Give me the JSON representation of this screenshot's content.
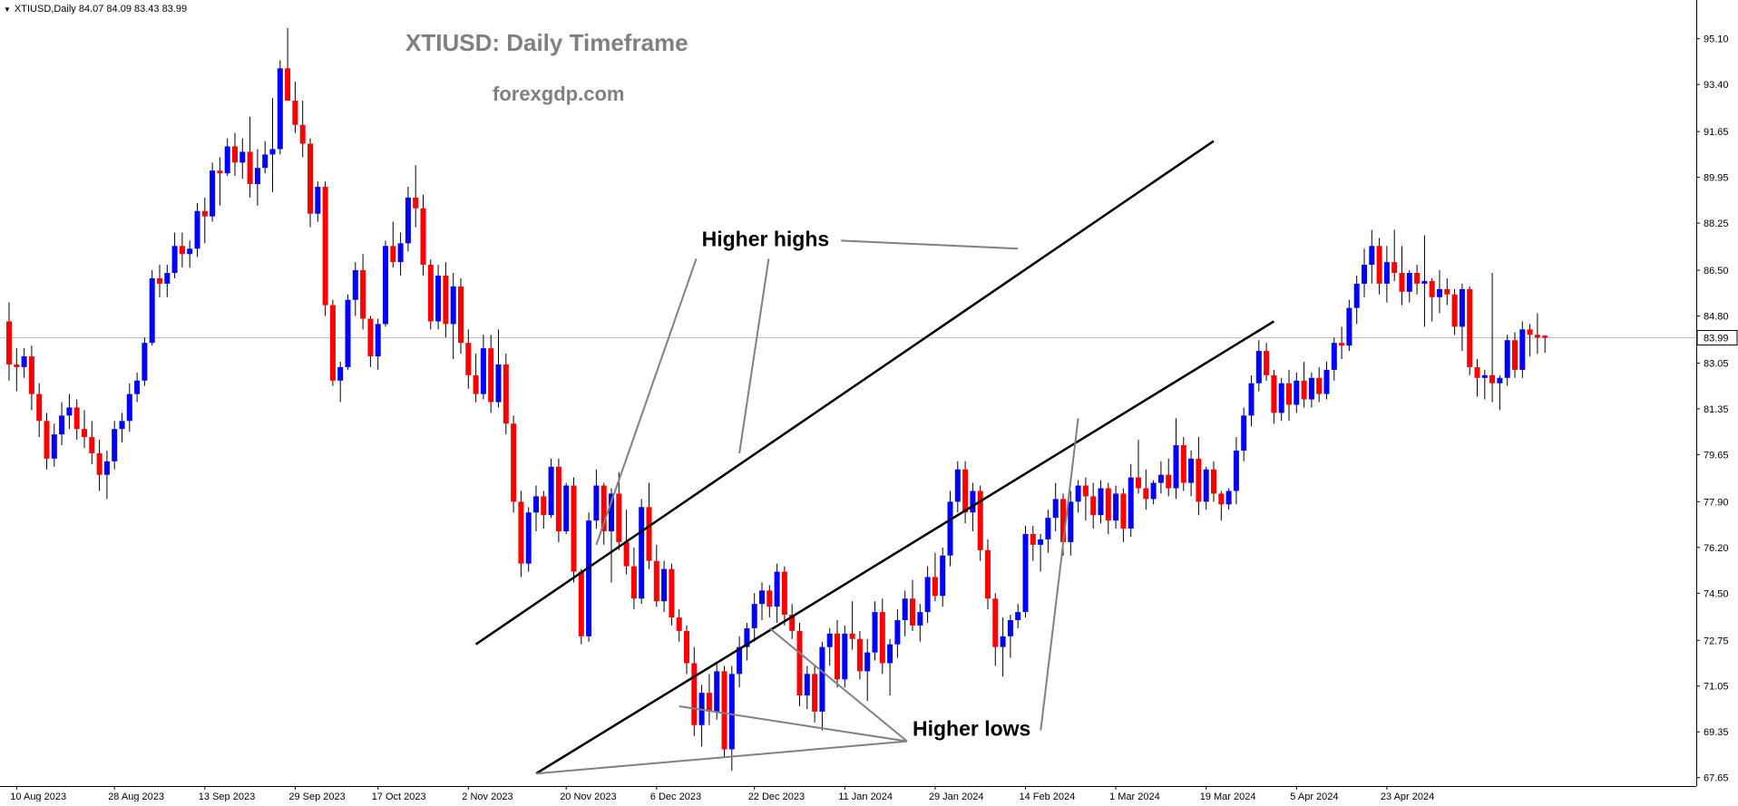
{
  "header": {
    "symbol_line": "XTIUSD,Daily  84.07 84.09 83.43 83.99",
    "dropdown_icon": "triangle-down-icon"
  },
  "chart_data": {
    "type": "candlestick",
    "title": "XTIUSD: Daily Timeframe",
    "subtitle": "forexgdp.com",
    "current_price": "83.99",
    "current_price_value": 83.99,
    "ylim": [
      67.1,
      96.0
    ],
    "y_ticks": [
      "95.10",
      "93.40",
      "91.65",
      "89.95",
      "88.25",
      "86.50",
      "84.80",
      "83.05",
      "81.35",
      "79.65",
      "77.90",
      "76.20",
      "74.50",
      "72.75",
      "71.05",
      "69.35",
      "67.65"
    ],
    "x_ticks": [
      "10 Aug 2023",
      "28 Aug 2023",
      "13 Sep 2023",
      "29 Sep 2023",
      "17 Oct 2023",
      "2 Nov 2023",
      "20 Nov 2023",
      "6 Dec 2023",
      "22 Dec 2023",
      "11 Jan 2024",
      "29 Jan 2024",
      "14 Feb 2024",
      "1 Mar 2024",
      "19 Mar 2024",
      "5 Apr 2024",
      "23 Apr 2024"
    ],
    "x_tick_index": [
      1,
      14,
      26,
      38,
      49,
      61,
      74,
      86,
      99,
      111,
      123,
      135,
      147,
      159,
      171,
      183
    ],
    "colors": {
      "bull": "#0000ff",
      "bear": "#ff0000",
      "wick": "#000000",
      "grid": "#c0c0c0",
      "title": "#808080"
    },
    "candles_ohlc": [
      [
        84.6,
        85.3,
        82.4,
        83.0
      ],
      [
        83.0,
        83.6,
        82.0,
        82.9
      ],
      [
        82.9,
        83.6,
        82.5,
        83.3
      ],
      [
        83.3,
        83.7,
        81.3,
        81.9
      ],
      [
        81.9,
        82.3,
        80.3,
        80.9
      ],
      [
        80.9,
        81.2,
        79.1,
        79.5
      ],
      [
        79.5,
        80.8,
        79.2,
        80.4
      ],
      [
        80.4,
        81.6,
        80.0,
        81.1
      ],
      [
        81.1,
        81.9,
        80.6,
        81.4
      ],
      [
        81.4,
        81.7,
        80.2,
        80.6
      ],
      [
        80.6,
        81.3,
        79.9,
        80.3
      ],
      [
        80.3,
        80.9,
        79.3,
        79.7
      ],
      [
        79.7,
        80.2,
        78.3,
        78.9
      ],
      [
        78.9,
        79.8,
        78.0,
        79.4
      ],
      [
        79.4,
        80.9,
        79.1,
        80.6
      ],
      [
        80.6,
        81.2,
        80.1,
        80.9
      ],
      [
        80.9,
        82.3,
        80.5,
        81.9
      ],
      [
        81.9,
        82.7,
        81.6,
        82.4
      ],
      [
        82.4,
        84.0,
        82.2,
        83.8
      ],
      [
        83.8,
        86.5,
        83.7,
        86.2
      ],
      [
        86.2,
        86.7,
        85.5,
        86.0
      ],
      [
        86.0,
        86.7,
        85.5,
        86.4
      ],
      [
        86.4,
        87.9,
        86.2,
        87.4
      ],
      [
        87.4,
        87.9,
        86.6,
        87.1
      ],
      [
        87.1,
        87.6,
        86.6,
        87.3
      ],
      [
        87.3,
        89.0,
        87.0,
        88.7
      ],
      [
        88.7,
        89.2,
        87.5,
        88.5
      ],
      [
        88.5,
        90.5,
        88.3,
        90.2
      ],
      [
        90.2,
        90.7,
        88.9,
        90.1
      ],
      [
        90.1,
        91.4,
        90.0,
        91.1
      ],
      [
        91.1,
        91.6,
        90.0,
        90.5
      ],
      [
        90.5,
        91.4,
        89.9,
        90.9
      ],
      [
        90.9,
        92.2,
        89.2,
        89.7
      ],
      [
        89.7,
        91.0,
        88.9,
        90.3
      ],
      [
        90.3,
        91.3,
        90.1,
        90.8
      ],
      [
        90.8,
        92.9,
        89.4,
        91.0
      ],
      [
        91.0,
        94.3,
        90.8,
        94.0
      ],
      [
        94.0,
        95.5,
        93.5,
        92.8
      ],
      [
        92.8,
        93.5,
        91.6,
        91.9
      ],
      [
        91.9,
        92.8,
        90.7,
        91.2
      ],
      [
        91.2,
        91.4,
        88.1,
        88.6
      ],
      [
        88.6,
        89.8,
        88.3,
        89.6
      ],
      [
        89.6,
        89.8,
        84.8,
        85.2
      ],
      [
        85.2,
        85.4,
        82.2,
        82.4
      ],
      [
        82.4,
        83.1,
        81.6,
        82.9
      ],
      [
        82.9,
        85.6,
        82.8,
        85.4
      ],
      [
        85.4,
        86.8,
        84.8,
        86.5
      ],
      [
        86.5,
        87.1,
        84.3,
        84.7
      ],
      [
        84.7,
        84.8,
        82.9,
        83.3
      ],
      [
        83.3,
        84.7,
        82.8,
        84.5
      ],
      [
        84.5,
        87.6,
        84.4,
        87.4
      ],
      [
        87.4,
        88.3,
        86.6,
        86.8
      ],
      [
        86.8,
        87.9,
        86.3,
        87.5
      ],
      [
        87.5,
        89.6,
        87.2,
        89.2
      ],
      [
        89.2,
        90.4,
        88.1,
        88.8
      ],
      [
        88.8,
        89.3,
        86.3,
        86.7
      ],
      [
        86.7,
        86.9,
        84.3,
        84.6
      ],
      [
        84.6,
        86.7,
        84.3,
        86.3
      ],
      [
        86.3,
        86.8,
        84.0,
        84.5
      ],
      [
        84.5,
        86.4,
        83.2,
        85.9
      ],
      [
        85.9,
        86.2,
        83.4,
        83.8
      ],
      [
        83.8,
        84.3,
        82.1,
        82.6
      ],
      [
        82.6,
        83.4,
        81.6,
        81.9
      ],
      [
        81.9,
        84.1,
        81.7,
        83.6
      ],
      [
        83.6,
        84.1,
        81.2,
        81.6
      ],
      [
        81.6,
        84.3,
        81.4,
        83.0
      ],
      [
        83.0,
        83.4,
        80.4,
        80.8
      ],
      [
        80.8,
        81.1,
        77.5,
        77.9
      ],
      [
        77.9,
        78.3,
        75.1,
        75.6
      ],
      [
        75.6,
        77.7,
        75.3,
        77.5
      ],
      [
        77.5,
        78.5,
        76.8,
        78.1
      ],
      [
        78.1,
        78.3,
        76.9,
        77.4
      ],
      [
        77.4,
        79.5,
        77.3,
        79.2
      ],
      [
        79.2,
        79.5,
        76.4,
        76.8
      ],
      [
        76.8,
        78.6,
        76.7,
        78.5
      ],
      [
        78.5,
        78.8,
        74.9,
        75.3
      ],
      [
        75.3,
        75.4,
        72.6,
        72.9
      ],
      [
        72.9,
        77.5,
        72.7,
        77.2
      ],
      [
        77.2,
        79.1,
        76.9,
        78.5
      ],
      [
        78.5,
        78.6,
        76.3,
        76.8
      ],
      [
        76.8,
        78.4,
        74.9,
        78.2
      ],
      [
        78.2,
        79.0,
        76.1,
        76.4
      ],
      [
        76.4,
        77.6,
        75.2,
        75.5
      ],
      [
        75.5,
        76.2,
        73.9,
        74.3
      ],
      [
        74.3,
        78.0,
        74.1,
        77.7
      ],
      [
        77.7,
        78.6,
        75.4,
        75.7
      ],
      [
        75.7,
        76.3,
        74.0,
        74.2
      ],
      [
        74.2,
        75.7,
        73.8,
        75.4
      ],
      [
        75.4,
        75.6,
        73.3,
        73.6
      ],
      [
        73.6,
        73.9,
        72.7,
        73.1
      ],
      [
        73.1,
        73.3,
        71.5,
        71.9
      ],
      [
        71.9,
        72.5,
        69.2,
        69.6
      ],
      [
        69.6,
        71.1,
        68.8,
        70.8
      ],
      [
        70.8,
        71.5,
        69.6,
        70.1
      ],
      [
        70.1,
        71.9,
        69.8,
        71.6
      ],
      [
        71.6,
        71.8,
        68.4,
        68.7
      ],
      [
        68.7,
        71.8,
        67.9,
        71.5
      ],
      [
        71.5,
        72.9,
        71.0,
        72.5
      ],
      [
        72.5,
        73.4,
        72.0,
        73.2
      ],
      [
        73.2,
        74.5,
        72.7,
        74.1
      ],
      [
        74.1,
        74.9,
        73.5,
        74.6
      ],
      [
        74.6,
        74.8,
        73.6,
        74.0
      ],
      [
        74.0,
        75.6,
        73.4,
        75.3
      ],
      [
        75.3,
        75.5,
        73.3,
        73.7
      ],
      [
        73.7,
        74.1,
        72.8,
        73.1
      ],
      [
        73.1,
        73.4,
        70.3,
        70.7
      ],
      [
        70.7,
        71.8,
        70.2,
        71.5
      ],
      [
        71.5,
        71.8,
        69.7,
        70.1
      ],
      [
        70.1,
        72.7,
        69.4,
        72.5
      ],
      [
        72.5,
        73.2,
        71.8,
        73.0
      ],
      [
        73.0,
        73.5,
        71.0,
        71.3
      ],
      [
        71.3,
        73.3,
        71.0,
        73.0
      ],
      [
        73.0,
        74.2,
        72.4,
        72.8
      ],
      [
        72.8,
        73.1,
        71.3,
        71.6
      ],
      [
        71.6,
        72.8,
        70.5,
        72.3
      ],
      [
        72.3,
        74.2,
        72.0,
        73.8
      ],
      [
        73.8,
        74.3,
        71.5,
        71.9
      ],
      [
        71.9,
        72.8,
        70.7,
        72.6
      ],
      [
        72.6,
        73.9,
        72.1,
        73.5
      ],
      [
        73.5,
        74.6,
        72.9,
        74.3
      ],
      [
        74.3,
        75.0,
        73.1,
        73.3
      ],
      [
        73.3,
        74.1,
        72.7,
        73.8
      ],
      [
        73.8,
        75.5,
        73.4,
        75.1
      ],
      [
        75.1,
        76.0,
        74.2,
        74.4
      ],
      [
        74.4,
        76.2,
        74.0,
        75.9
      ],
      [
        75.9,
        78.3,
        75.5,
        77.9
      ],
      [
        77.9,
        79.4,
        77.5,
        79.1
      ],
      [
        79.1,
        79.4,
        77.1,
        77.5
      ],
      [
        77.5,
        78.6,
        76.8,
        78.3
      ],
      [
        78.3,
        78.5,
        75.7,
        76.1
      ],
      [
        76.1,
        76.5,
        73.9,
        74.3
      ],
      [
        74.3,
        74.5,
        71.8,
        72.5
      ],
      [
        72.5,
        73.6,
        71.4,
        72.9
      ],
      [
        72.9,
        73.7,
        72.1,
        73.5
      ],
      [
        73.5,
        74.1,
        73.2,
        73.8
      ],
      [
        73.8,
        77.0,
        73.6,
        76.7
      ],
      [
        76.7,
        77.0,
        75.7,
        76.3
      ],
      [
        76.3,
        76.7,
        75.3,
        76.5
      ],
      [
        76.5,
        77.6,
        76.0,
        77.3
      ],
      [
        77.3,
        78.6,
        76.8,
        78.0
      ],
      [
        78.0,
        78.2,
        75.9,
        76.4
      ],
      [
        76.4,
        78.3,
        75.9,
        77.9
      ],
      [
        77.9,
        78.7,
        77.5,
        78.5
      ],
      [
        78.5,
        78.8,
        77.2,
        78.1
      ],
      [
        78.1,
        78.6,
        76.9,
        77.4
      ],
      [
        77.4,
        78.7,
        77.1,
        78.4
      ],
      [
        78.4,
        78.6,
        76.7,
        77.2
      ],
      [
        77.2,
        78.5,
        76.9,
        78.2
      ],
      [
        78.2,
        78.4,
        76.4,
        76.9
      ],
      [
        76.9,
        79.3,
        76.6,
        78.8
      ],
      [
        78.8,
        80.2,
        78.2,
        78.4
      ],
      [
        78.4,
        79.1,
        77.6,
        78.0
      ],
      [
        78.0,
        78.7,
        77.8,
        78.6
      ],
      [
        78.6,
        79.4,
        78.2,
        78.9
      ],
      [
        78.9,
        79.5,
        78.1,
        78.4
      ],
      [
        78.4,
        81.0,
        78.0,
        80.0
      ],
      [
        80.0,
        80.3,
        78.3,
        78.6
      ],
      [
        78.6,
        79.8,
        78.1,
        79.5
      ],
      [
        79.5,
        80.3,
        77.4,
        77.9
      ],
      [
        77.9,
        79.2,
        77.6,
        79.1
      ],
      [
        79.1,
        79.4,
        77.9,
        78.2
      ],
      [
        78.2,
        78.3,
        77.2,
        77.8
      ],
      [
        77.8,
        78.4,
        77.6,
        78.3
      ],
      [
        78.3,
        80.3,
        77.8,
        79.8
      ],
      [
        79.8,
        81.4,
        79.4,
        81.1
      ],
      [
        81.1,
        82.6,
        80.7,
        82.3
      ],
      [
        82.3,
        83.9,
        82.0,
        83.5
      ],
      [
        83.5,
        83.8,
        82.4,
        82.6
      ],
      [
        82.6,
        82.8,
        80.8,
        81.2
      ],
      [
        81.2,
        82.5,
        80.9,
        82.3
      ],
      [
        82.3,
        82.8,
        80.9,
        81.5
      ],
      [
        81.5,
        82.7,
        81.2,
        82.4
      ],
      [
        82.4,
        83.1,
        81.4,
        81.7
      ],
      [
        81.7,
        82.7,
        81.4,
        82.5
      ],
      [
        82.5,
        82.9,
        81.6,
        81.9
      ],
      [
        81.9,
        83.1,
        81.7,
        82.8
      ],
      [
        82.8,
        84.0,
        82.4,
        83.8
      ],
      [
        83.8,
        84.4,
        83.2,
        83.7
      ],
      [
        83.7,
        85.4,
        83.5,
        85.1
      ],
      [
        85.1,
        86.3,
        84.5,
        86.0
      ],
      [
        86.0,
        87.3,
        85.5,
        86.7
      ],
      [
        86.7,
        88.0,
        86.0,
        87.4
      ],
      [
        87.4,
        87.7,
        85.6,
        86.0
      ],
      [
        86.0,
        87.4,
        85.3,
        86.8
      ],
      [
        86.8,
        88.0,
        86.1,
        86.4
      ],
      [
        86.4,
        87.4,
        85.2,
        85.7
      ],
      [
        85.7,
        86.5,
        85.3,
        86.4
      ],
      [
        86.4,
        86.7,
        85.6,
        86.0
      ],
      [
        86.0,
        87.8,
        84.4,
        86.1
      ],
      [
        86.1,
        86.2,
        84.6,
        85.5
      ],
      [
        85.5,
        86.5,
        84.9,
        85.8
      ],
      [
        85.8,
        86.2,
        85.2,
        85.6
      ],
      [
        85.6,
        85.8,
        84.1,
        84.4
      ],
      [
        84.4,
        86.0,
        83.5,
        85.8
      ],
      [
        85.8,
        85.9,
        82.6,
        82.9
      ],
      [
        82.9,
        83.2,
        81.8,
        82.5
      ],
      [
        82.5,
        82.8,
        81.7,
        82.6
      ],
      [
        82.6,
        86.4,
        81.6,
        82.3
      ],
      [
        82.3,
        82.6,
        81.3,
        82.5
      ],
      [
        82.5,
        84.1,
        82.2,
        83.9
      ],
      [
        83.9,
        84.2,
        82.5,
        82.8
      ],
      [
        82.8,
        84.6,
        82.5,
        84.3
      ],
      [
        84.3,
        84.5,
        83.3,
        84.1
      ],
      [
        84.1,
        84.9,
        83.4,
        84.0
      ],
      [
        84.07,
        84.09,
        83.43,
        83.99
      ]
    ],
    "channel_upper": [
      [
        62,
        72.6
      ],
      [
        160,
        91.3
      ]
    ],
    "channel_lower": [
      [
        70,
        67.8
      ],
      [
        168,
        84.6
      ]
    ],
    "annotations": [
      {
        "label": "Higher highs",
        "anchor": [
          92,
          87.4
        ],
        "pointers": [
          [
            78,
            76.3
          ],
          [
            97,
            79.7
          ],
          [
            134,
            87.3
          ]
        ]
      },
      {
        "label": "Higher lows",
        "anchor": [
          120,
          69.2
        ],
        "pointers": [
          [
            70,
            67.8
          ],
          [
            89,
            70.3
          ],
          [
            101,
            73.2
          ],
          [
            142,
            81.0
          ]
        ]
      }
    ]
  }
}
